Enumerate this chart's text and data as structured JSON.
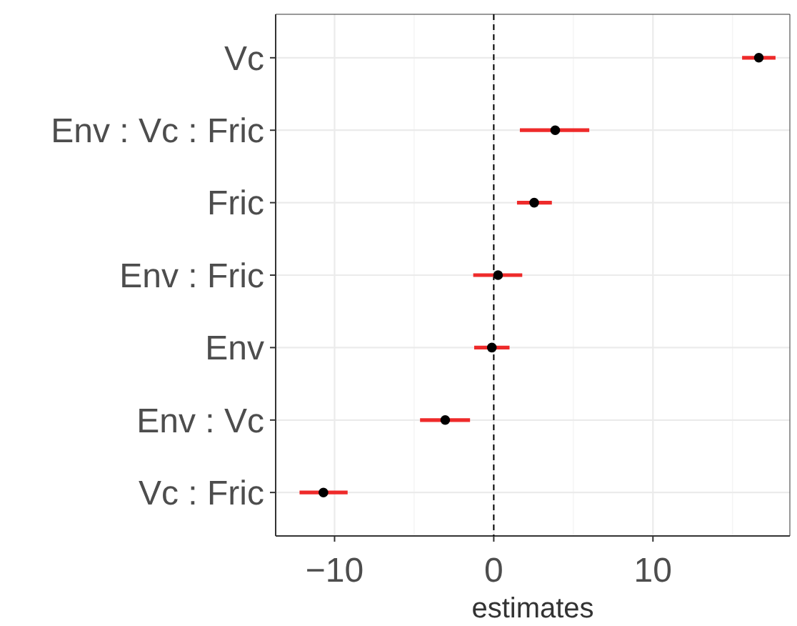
{
  "chart_data": {
    "type": "scatter",
    "orientation": "horizontal",
    "xlabel": "estimates",
    "categories": [
      "Vc",
      "Env : Vc : Fric",
      "Fric",
      "Env : Fric",
      "Env",
      "Env : Vc",
      "Vc : Fric"
    ],
    "series": [
      {
        "color": "#000000",
        "values": [
          16.65,
          3.86,
          2.54,
          0.27,
          -0.12,
          -3.05,
          -10.7
        ],
        "errors": [
          [
            15.6,
            17.7
          ],
          [
            1.64,
            6.0
          ],
          [
            1.46,
            3.65
          ],
          [
            -1.29,
            1.79
          ],
          [
            -1.23,
            0.99
          ],
          [
            -4.63,
            -1.49
          ],
          [
            -12.2,
            -9.18
          ]
        ]
      }
    ],
    "xlim": [
      -13.7,
      18.6
    ],
    "xticks": [
      {
        "value": -10,
        "label": "−10"
      },
      {
        "value": -5,
        "label": null
      },
      0,
      {
        "value": 5,
        "label": null
      },
      10,
      {
        "value": 15,
        "label": null
      }
    ],
    "ref_lines": [
      {
        "axis": "x",
        "value": 0,
        "line_style": "dashed",
        "color": "#000000"
      }
    ],
    "grid": true,
    "marker": "circle"
  }
}
